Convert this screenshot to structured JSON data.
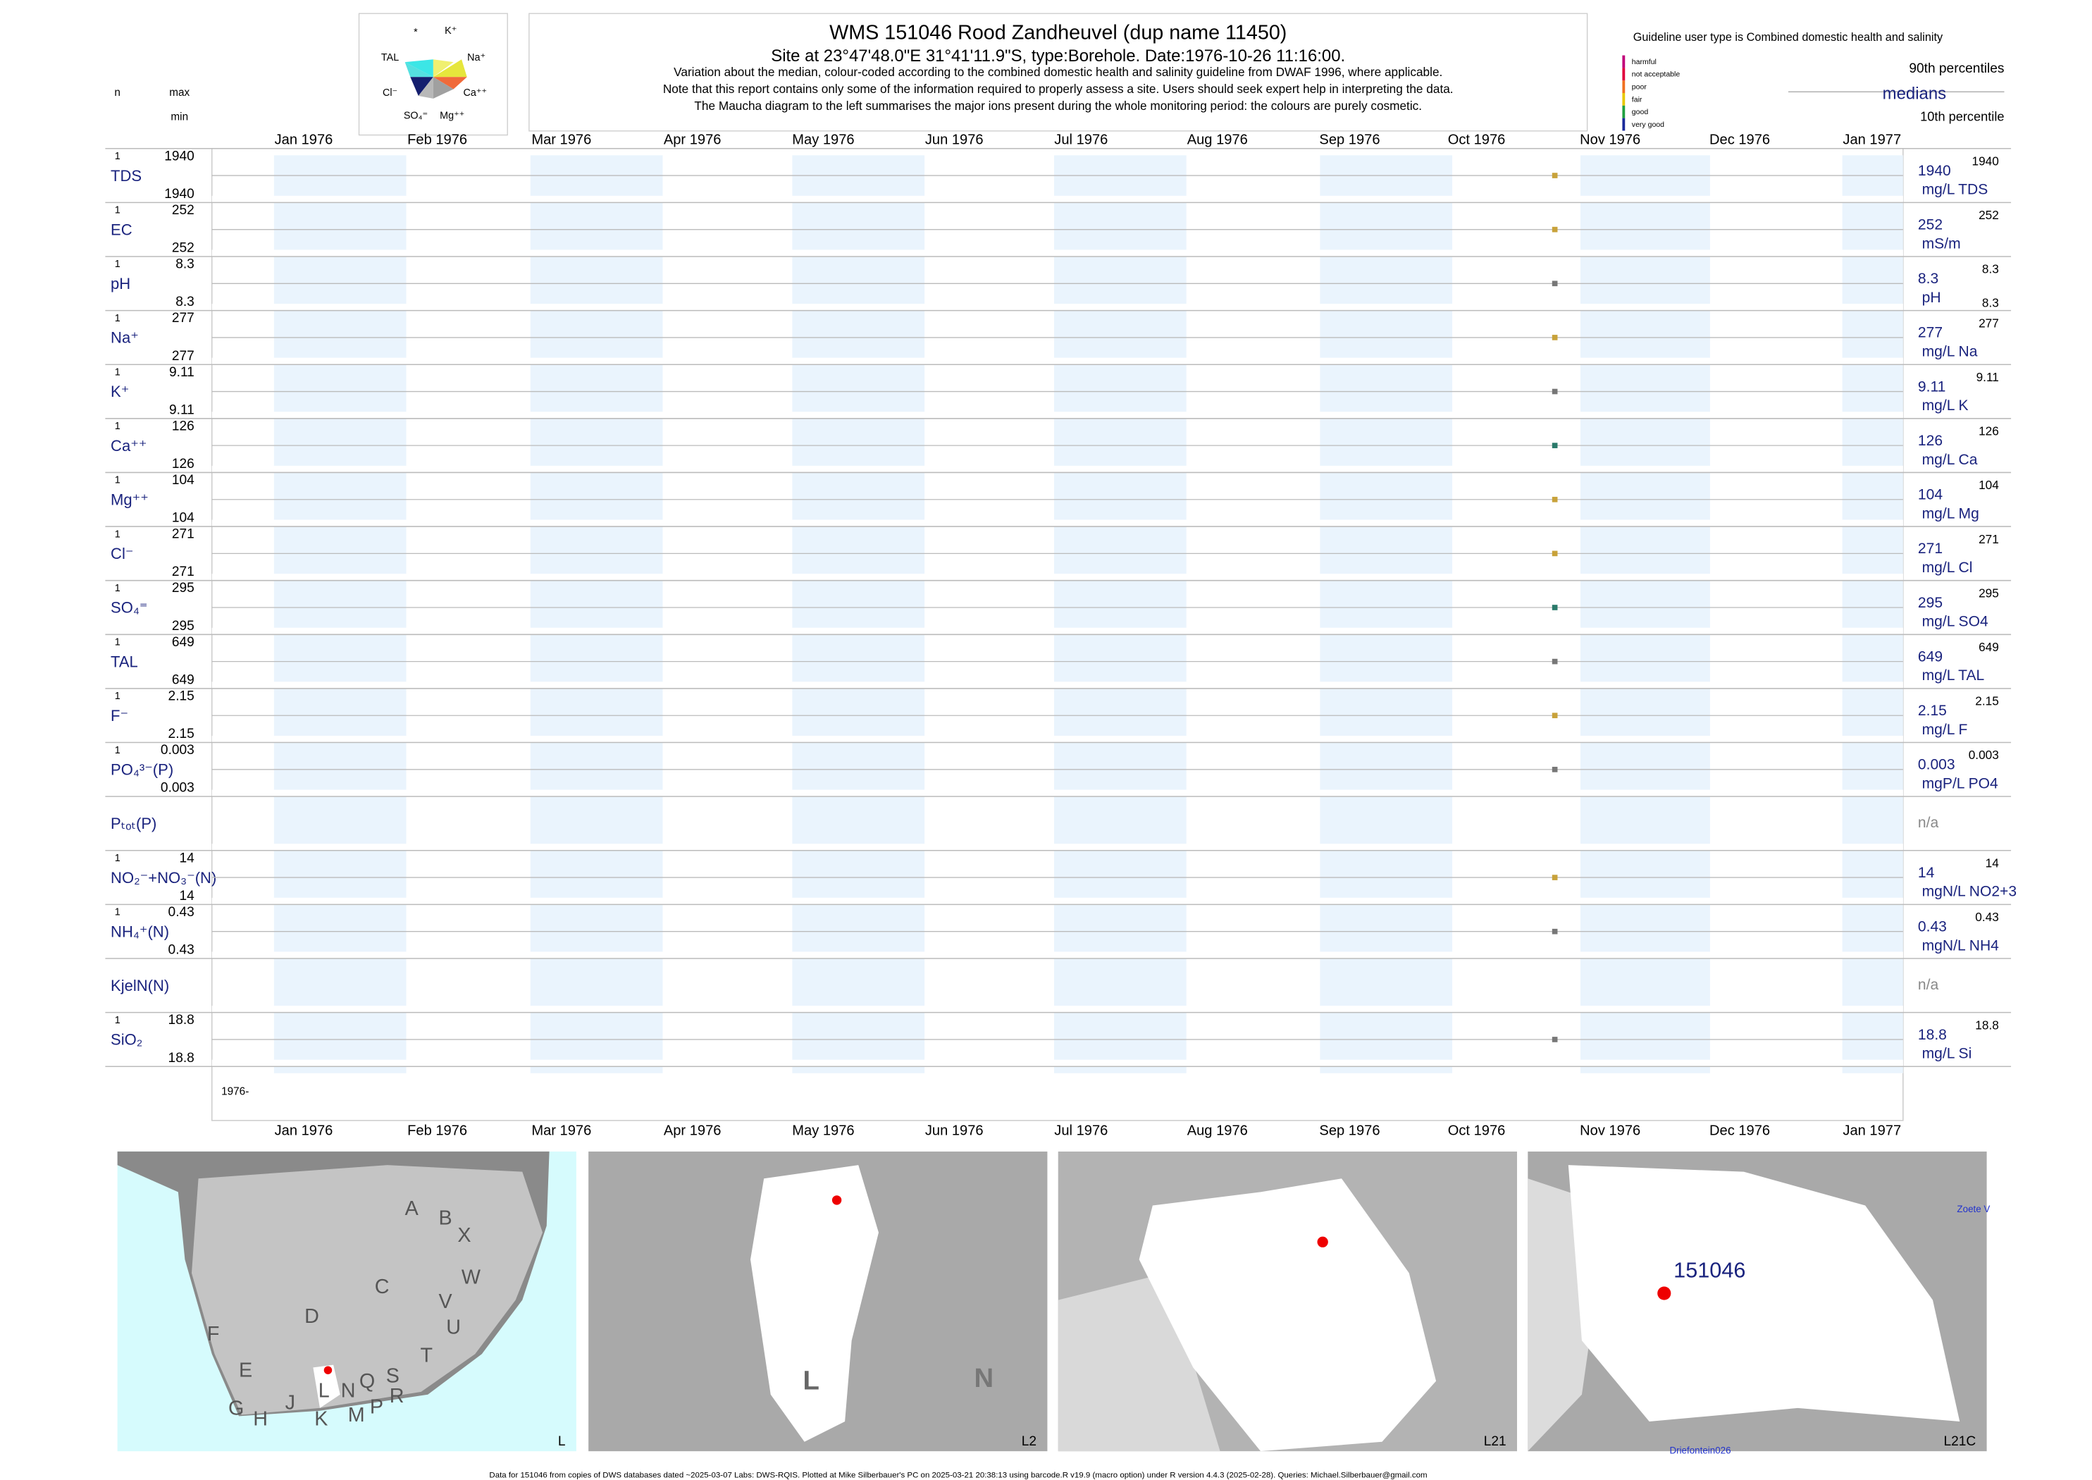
{
  "header": {
    "title": "WMS 151046  Rood Zandheuvel (dup name 11450)",
    "subtitle": "Site at 23°47'48.0\"E 31°41'11.9\"S, type:Borehole. Date:1976-10-26 11:16:00.",
    "notes": [
      "Variation about the median,  colour-coded according to the combined domestic health and salinity guideline from DWAF 1996, where applicable.",
      "Note that this report contains only some of the information required to properly assess a site. Users should seek expert help in interpreting the data.",
      "The Maucha diagram to the left summarises the major ions present during the whole monitoring period: the colours are purely cosmetic."
    ]
  },
  "maucha": {
    "labels": [
      "*",
      "K⁺",
      "TAL",
      "Na⁺",
      "Cl⁻",
      "Ca⁺⁺",
      "SO₄⁼",
      "Mg⁺⁺"
    ]
  },
  "column_heads": {
    "n": "n",
    "max": "max",
    "min": "min"
  },
  "guideline": {
    "title": "Guideline user type is Combined domestic health and salinity",
    "classes": [
      {
        "label": "harmful",
        "color": "#c0007a"
      },
      {
        "label": "not acceptable",
        "color": "#e0003c"
      },
      {
        "label": "poor",
        "color": "#f07020"
      },
      {
        "label": "fair",
        "color": "#e8c800"
      },
      {
        "label": "good",
        "color": "#20a040"
      },
      {
        "label": "very good",
        "color": "#1a2a9a"
      }
    ],
    "p90": "90th percentiles",
    "medians": "medians",
    "p10": "10th percentile"
  },
  "months": [
    "Jan 1976",
    "Feb 1976",
    "Mar 1976",
    "Apr 1976",
    "May 1976",
    "Jun 1976",
    "Jul 1976",
    "Aug 1976",
    "Sep 1976",
    "Oct 1976",
    "Nov 1976",
    "Dec 1976",
    "Jan 1977"
  ],
  "year_label": "1976-",
  "rows": [
    {
      "name": "TDS",
      "n": "1",
      "max": "1940",
      "min": "1940",
      "median": "1940",
      "p90": "1940",
      "unit": "mg/L TDS",
      "color": "#c8a23a"
    },
    {
      "name": "EC",
      "n": "1",
      "max": "252",
      "min": "252",
      "median": "252",
      "p90": "252",
      "unit": "mS/m",
      "color": "#c8a23a"
    },
    {
      "name": "pH",
      "n": "1",
      "max": "8.3",
      "min": "8.3",
      "median": "8.3",
      "p90": "8.3",
      "p10": "8.3",
      "unit": "pH",
      "color": "#777777"
    },
    {
      "name": "Na⁺",
      "n": "1",
      "max": "277",
      "min": "277",
      "median": "277",
      "p90": "277",
      "unit": "mg/L Na",
      "color": "#c8a23a"
    },
    {
      "name": "K⁺",
      "n": "1",
      "max": "9.11",
      "min": "9.11",
      "median": "9.11",
      "p90": "9.11",
      "unit": "mg/L K",
      "color": "#777777"
    },
    {
      "name": "Ca⁺⁺",
      "n": "1",
      "max": "126",
      "min": "126",
      "median": "126",
      "p90": "126",
      "unit": "mg/L Ca",
      "color": "#2a7a6a"
    },
    {
      "name": "Mg⁺⁺",
      "n": "1",
      "max": "104",
      "min": "104",
      "median": "104",
      "p90": "104",
      "unit": "mg/L Mg",
      "color": "#c8a23a"
    },
    {
      "name": "Cl⁻",
      "n": "1",
      "max": "271",
      "min": "271",
      "median": "271",
      "p90": "271",
      "unit": "mg/L Cl",
      "color": "#c8a23a"
    },
    {
      "name": "SO₄⁼",
      "n": "1",
      "max": "295",
      "min": "295",
      "median": "295",
      "p90": "295",
      "unit": "mg/L SO4",
      "color": "#2a7a6a"
    },
    {
      "name": "TAL",
      "n": "1",
      "max": "649",
      "min": "649",
      "median": "649",
      "p90": "649",
      "unit": "mg/L TAL",
      "color": "#777777"
    },
    {
      "name": "F⁻",
      "n": "1",
      "max": "2.15",
      "min": "2.15",
      "median": "2.15",
      "p90": "2.15",
      "unit": "mg/L F",
      "color": "#c8a23a"
    },
    {
      "name": "PO₄³⁻(P)",
      "n": "1",
      "max": "0.003",
      "min": "0.003",
      "median": "0.003",
      "p90": "0.003",
      "unit": "mgP/L PO4",
      "color": "#777777"
    },
    {
      "name": "Pₜₒₜ(P)",
      "median": "n/a"
    },
    {
      "name": "NO₂⁻+NO₃⁻(N)",
      "n": "1",
      "max": "14",
      "min": "14",
      "median": "14",
      "p90": "14",
      "unit": "mgN/L NO2+3",
      "color": "#c8a23a"
    },
    {
      "name": "NH₄⁺(N)",
      "n": "1",
      "max": "0.43",
      "min": "0.43",
      "median": "0.43",
      "p90": "0.43",
      "unit": "mgN/L NH4",
      "color": "#777777"
    },
    {
      "name": "KjelN(N)",
      "median": "n/a"
    },
    {
      "name": "SiO₂",
      "n": "1",
      "max": "18.8",
      "min": "18.8",
      "median": "18.8",
      "p90": "18.8",
      "unit": "mg/L Si",
      "color": "#777777"
    }
  ],
  "maps": [
    {
      "corner": "L",
      "labels": [
        "A",
        "B",
        "X",
        "C",
        "W",
        "D",
        "V",
        "U",
        "F",
        "T",
        "E",
        "L",
        "N",
        "Q",
        "S",
        "R",
        "J",
        "K",
        "M",
        "P",
        "G",
        "H"
      ]
    },
    {
      "corner": "L2",
      "labels": [
        "L",
        "N"
      ]
    },
    {
      "corner": "L21",
      "labels": []
    },
    {
      "corner": "L21C",
      "labels": [
        "151046",
        "Zoete V",
        "Driefontein026"
      ]
    }
  ],
  "footer": "Data for 151046 from copies of DWS databases dated ~2025-03-07 Labs: DWS-RQIS. Plotted at Mike Silberbauer's PC on 2025-03-21 20:38:13 using barcode.R v19.9 (macro option) under R version 4.4.3 (2025-02-28). Queries: Michael.Silberbauer@gmail.com"
}
